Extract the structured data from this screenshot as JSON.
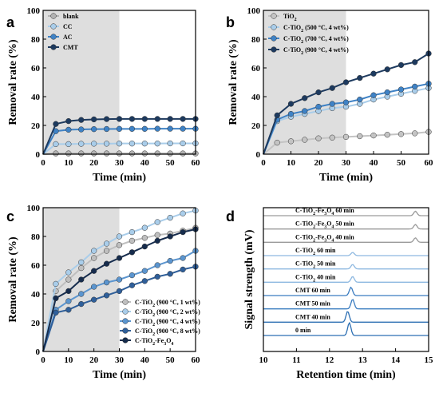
{
  "chart_data": [
    {
      "panel": "a",
      "type": "line",
      "xlabel": "Time  (min)",
      "ylabel": "Removal rate (%)",
      "xlim": [
        0,
        60
      ],
      "ylim": [
        0,
        100
      ],
      "xticks": [
        0,
        10,
        20,
        30,
        40,
        50,
        60
      ],
      "yticks": [
        0,
        20,
        40,
        60,
        80,
        100
      ],
      "shaded_x": [
        0,
        30
      ],
      "grid": false,
      "legend_position": "top-left",
      "x": [
        0,
        5,
        10,
        15,
        20,
        25,
        30,
        35,
        40,
        45,
        50,
        55,
        60
      ],
      "series": [
        {
          "name": "blank",
          "color": "#b3b3b3",
          "values": [
            0,
            0.5,
            0.5,
            0.5,
            0.5,
            0.5,
            0.5,
            0.5,
            0.5,
            0.5,
            0.5,
            0.5,
            0.5
          ]
        },
        {
          "name": "CC",
          "color": "#a9cdea",
          "values": [
            0,
            7,
            7,
            7.2,
            7.3,
            7.3,
            7.4,
            7.4,
            7.4,
            7.4,
            7.5,
            7.5,
            7.5
          ]
        },
        {
          "name": "AC",
          "color": "#3f82c5",
          "values": [
            0,
            16,
            17,
            17.2,
            17.4,
            17.5,
            17.6,
            17.6,
            17.6,
            17.7,
            17.7,
            17.7,
            17.7
          ]
        },
        {
          "name": "CMT",
          "color": "#1d3a5f",
          "values": [
            0,
            21,
            23,
            23.8,
            24.2,
            24.4,
            24.5,
            24.5,
            24.5,
            24.5,
            24.5,
            24.5,
            24.5
          ]
        }
      ]
    },
    {
      "panel": "b",
      "type": "line",
      "xlabel": "Time  (min)",
      "ylabel": "Removal rate (%)",
      "xlim": [
        0,
        60
      ],
      "ylim": [
        0,
        100
      ],
      "xticks": [
        0,
        10,
        20,
        30,
        40,
        50,
        60
      ],
      "yticks": [
        0,
        20,
        40,
        60,
        80,
        100
      ],
      "shaded_x": [
        0,
        30
      ],
      "grid": false,
      "legend_position": "top-left",
      "x": [
        0,
        5,
        10,
        15,
        20,
        25,
        30,
        35,
        40,
        45,
        50,
        55,
        60
      ],
      "series": [
        {
          "name": "TiO2",
          "color": "#c4c4c4",
          "values": [
            0,
            8,
            9,
            10,
            11,
            11.5,
            12,
            12.5,
            13,
            13.5,
            14,
            14.5,
            15.5
          ]
        },
        {
          "name": "C-TiO2 (500 °C, 4 wt%)",
          "color": "#a9cdea",
          "values": [
            0,
            23,
            26,
            28,
            30,
            32,
            33,
            35,
            38,
            40,
            42,
            44,
            46
          ]
        },
        {
          "name": "C-TiO2 (700 °C, 4 wt%)",
          "color": "#3f82c5",
          "values": [
            0,
            24,
            28,
            30,
            33,
            35,
            36,
            38,
            41,
            43,
            45,
            47,
            49
          ]
        },
        {
          "name": "C-TiO2 (900 °C, 4 wt%)",
          "color": "#1d3a5f",
          "values": [
            0,
            27,
            35,
            39,
            43,
            46,
            50,
            53,
            56,
            59,
            62,
            64,
            70
          ]
        }
      ]
    },
    {
      "panel": "c",
      "type": "line",
      "xlabel": "Time  (min)",
      "ylabel": "Removal rate (%)",
      "xlim": [
        0,
        60
      ],
      "ylim": [
        0,
        100
      ],
      "xticks": [
        0,
        10,
        20,
        30,
        40,
        50,
        60
      ],
      "yticks": [
        0,
        20,
        40,
        60,
        80,
        100
      ],
      "shaded_x": [
        0,
        30
      ],
      "grid": false,
      "legend_position": "bottom-right",
      "x": [
        0,
        5,
        10,
        15,
        20,
        25,
        30,
        35,
        40,
        45,
        50,
        55,
        60
      ],
      "series": [
        {
          "name": "C-TiO2 (900 °C, 1 wt%)",
          "color": "#bfbfbf",
          "values": [
            0,
            42,
            50,
            58,
            65,
            70,
            74,
            77,
            79,
            81,
            82,
            84,
            86
          ]
        },
        {
          "name": "C-TiO2 (900 °C, 2 wt%)",
          "color": "#a9cdea",
          "values": [
            0,
            47,
            55,
            62,
            70,
            75,
            80,
            83,
            86,
            90,
            93,
            96,
            98
          ]
        },
        {
          "name": "C-TiO2 (900 °C, 4 wt%)",
          "color": "#5b95cf",
          "values": [
            0,
            29,
            35,
            40,
            45,
            48,
            50,
            53,
            56,
            60,
            63,
            65,
            70
          ]
        },
        {
          "name": "C-TiO2 (900 °C, 8 wt%)",
          "color": "#2f5f9a",
          "values": [
            0,
            27,
            29,
            33,
            36,
            39,
            42,
            46,
            49,
            52,
            54,
            57,
            59
          ]
        },
        {
          "name": "C-TiO2-Fe3O4",
          "color": "#162c4d",
          "values": [
            0,
            37,
            42,
            50,
            56,
            61,
            65,
            69,
            73,
            77,
            80,
            83,
            85
          ]
        }
      ]
    },
    {
      "panel": "d",
      "type": "line",
      "xlabel": "Retention time (min)",
      "ylabel": "Signal strength (mV)",
      "xlim": [
        10,
        15
      ],
      "xticks": [
        10,
        11,
        12,
        13,
        14,
        15
      ],
      "grid": false,
      "traces": [
        {
          "label": "0 min",
          "color": "#2c6fb3",
          "peak_x": 12.6,
          "peak_h": 1.0
        },
        {
          "label": "CMT 40 min",
          "color": "#2c6fb3",
          "peak_x": 12.55,
          "peak_h": 0.85
        },
        {
          "label": "CMT 50 min",
          "color": "#3a7cc0",
          "peak_x": 12.7,
          "peak_h": 0.75
        },
        {
          "label": "CMT 60 min",
          "color": "#3a7cc0",
          "peak_x": 12.65,
          "peak_h": 0.65
        },
        {
          "label": "C-TiO2 40 min",
          "color": "#8db8e0",
          "peak_x": 12.7,
          "peak_h": 0.45
        },
        {
          "label": "C-TiO2 50 min",
          "color": "#8db8e0",
          "peak_x": 12.7,
          "peak_h": 0.35
        },
        {
          "label": "C-TiO2 60 min",
          "color": "#8db8e0",
          "peak_x": 12.7,
          "peak_h": 0.25
        },
        {
          "label": "C-TiO2-Fe3O4 40 min",
          "color": "#9a9a9a",
          "peak_x": 14.6,
          "peak_h": 0.35
        },
        {
          "label": "C-TiO2-Fe3O4 50 min",
          "color": "#9a9a9a",
          "peak_x": 14.6,
          "peak_h": 0.35
        },
        {
          "label": "C-TiO2-Fe3O4 60 min",
          "color": "#9a9a9a",
          "peak_x": 14.6,
          "peak_h": 0.35
        }
      ]
    }
  ],
  "panel_letters": {
    "a": "a",
    "b": "b",
    "c": "c",
    "d": "d"
  }
}
